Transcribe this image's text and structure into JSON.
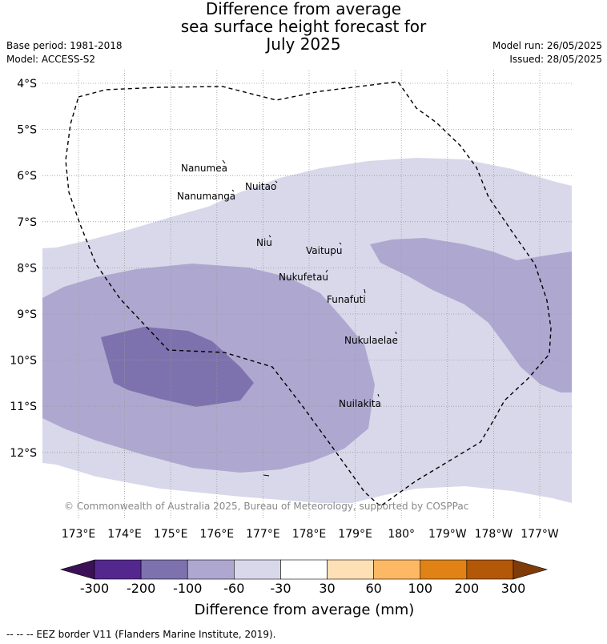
{
  "title": {
    "line1": "Difference from average",
    "line2": "sea surface height forecast for",
    "line3": "July 2025"
  },
  "meta": {
    "base_period": "Base period: 1981-2018",
    "model": "Model: ACCESS-S2",
    "model_run": "Model run: 26/05/2025",
    "issued": "Issued: 28/05/2025"
  },
  "map": {
    "lat_labels": [
      "4°S",
      "5°S",
      "6°S",
      "7°S",
      "8°S",
      "9°S",
      "10°S",
      "11°S",
      "12°S"
    ],
    "lon_labels": [
      "173°E",
      "174°E",
      "175°E",
      "176°E",
      "177°E",
      "178°E",
      "179°E",
      "180°",
      "179°W",
      "178°W",
      "177°W"
    ],
    "islands": [
      "Nanumea",
      "Nuitao",
      "Nanumanga",
      "Niu",
      "Vaitupu",
      "Nukufetau",
      "Funafuti",
      "Nukulaelae",
      "Nuilakita"
    ],
    "copyright": "© Commonwealth of Australia 2025, Bureau of Meteorology, supported by COSPPac",
    "colors": {
      "neg_30_60": "#d8d8ea",
      "neg_60_100": "#aea8d0",
      "neg_100_200": "#7e72ae"
    }
  },
  "colorbar": {
    "title": "Difference from average (mm)",
    "ticks": [
      "-300",
      "-200",
      "-100",
      "-60",
      "-30",
      "30",
      "60",
      "100",
      "200",
      "300"
    ],
    "colors": [
      "#3b1057",
      "#54278f",
      "#7e72ae",
      "#aea8d0",
      "#d8d8ea",
      "#ffffff",
      "#fee0b6",
      "#fdb863",
      "#e08214",
      "#b35806",
      "#7f3b08"
    ]
  },
  "legend_note": "--  --  -- EEZ border V11 (Flanders Marine Institute, 2019)."
}
